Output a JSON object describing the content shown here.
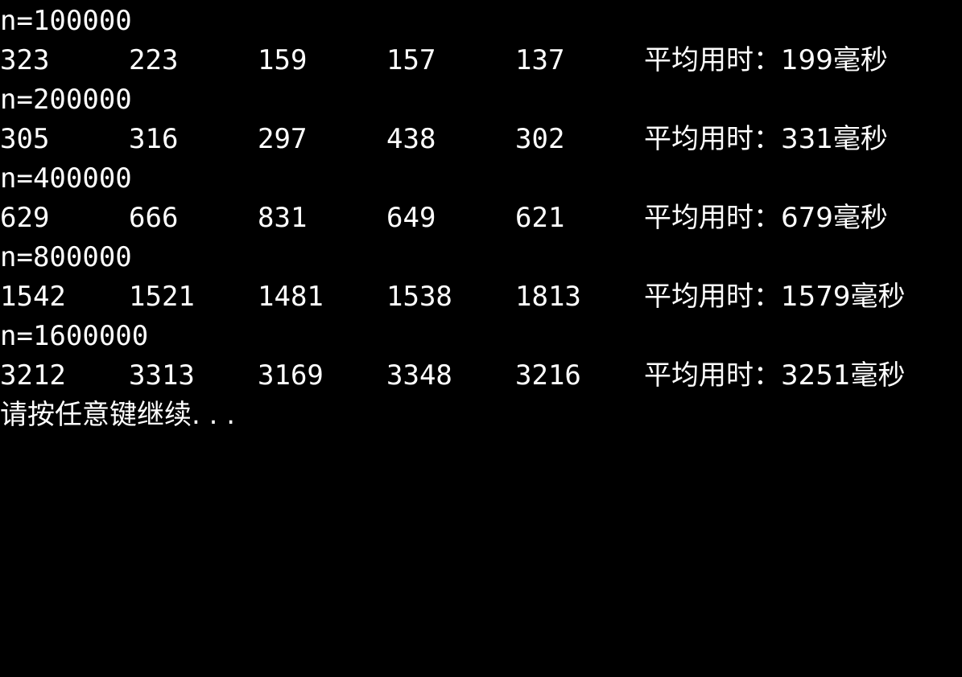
{
  "console": {
    "background": "#000000",
    "foreground": "#ffffff",
    "blocks": [
      {
        "header": "n=100000",
        "times": [
          "323",
          "223",
          "159",
          "157",
          "137"
        ],
        "average": "平均用时：199毫秒"
      },
      {
        "header": "n=200000",
        "times": [
          "305",
          "316",
          "297",
          "438",
          "302"
        ],
        "average": "平均用时：331毫秒"
      },
      {
        "header": "n=400000",
        "times": [
          "629",
          "666",
          "831",
          "649",
          "621"
        ],
        "average": "平均用时：679毫秒"
      },
      {
        "header": "n=800000",
        "times": [
          "1542",
          "1521",
          "1481",
          "1538",
          "1813"
        ],
        "average": "平均用时：1579毫秒"
      },
      {
        "header": "n=1600000",
        "times": [
          "3212",
          "3313",
          "3169",
          "3348",
          "3216"
        ],
        "average": "平均用时：3251毫秒"
      }
    ],
    "prompt": "请按任意键继续. . ."
  }
}
